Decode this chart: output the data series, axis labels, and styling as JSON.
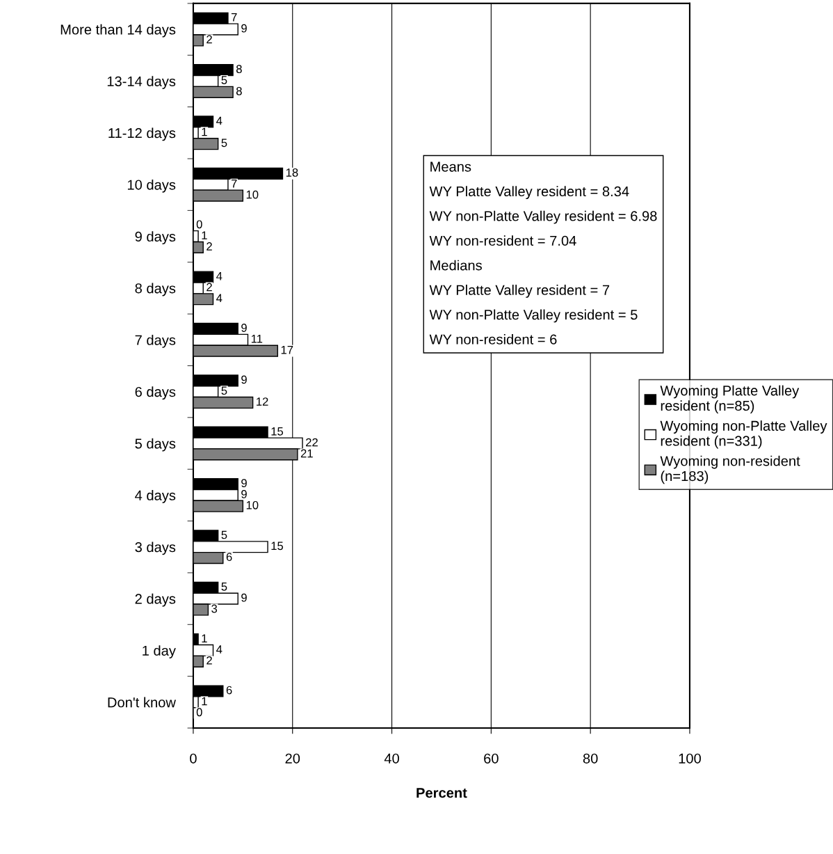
{
  "chart_data": {
    "type": "bar",
    "orientation": "horizontal",
    "xlabel": "Percent",
    "categories": [
      "More than 14 days",
      "13-14 days",
      "11-12 days",
      "10 days",
      "9 days",
      "8 days",
      "7 days",
      "6 days",
      "5 days",
      "4 days",
      "3 days",
      "2 days",
      "1 day",
      "Don't know"
    ],
    "series": [
      {
        "name": "Wyoming Platte Valley resident (n=85)",
        "color": "#000000",
        "values": [
          7,
          8,
          4,
          18,
          0,
          4,
          9,
          9,
          15,
          9,
          5,
          5,
          1,
          6
        ]
      },
      {
        "name": "Wyoming non-Platte Valley resident (n=331)",
        "color": "#ffffff",
        "values": [
          9,
          5,
          1,
          7,
          1,
          2,
          11,
          5,
          22,
          9,
          15,
          9,
          4,
          1
        ]
      },
      {
        "name": "Wyoming non-resident (n=183)",
        "color": "#808080",
        "values": [
          2,
          8,
          5,
          10,
          2,
          4,
          17,
          12,
          21,
          10,
          6,
          3,
          2,
          0
        ]
      }
    ],
    "xlim": [
      0,
      100
    ],
    "xticks": [
      0,
      20,
      40,
      60,
      80,
      100
    ],
    "grid": "x",
    "data_labels": true,
    "legend": "right",
    "annotations": [
      "Means",
      "WY Platte Valley resident = 8.34",
      "WY non-Platte Valley resident = 6.98",
      "WY non-resident = 7.04",
      "Medians",
      "WY Platte Valley resident = 7",
      "WY non-Platte Valley resident = 5",
      "WY non-resident = 6"
    ]
  }
}
